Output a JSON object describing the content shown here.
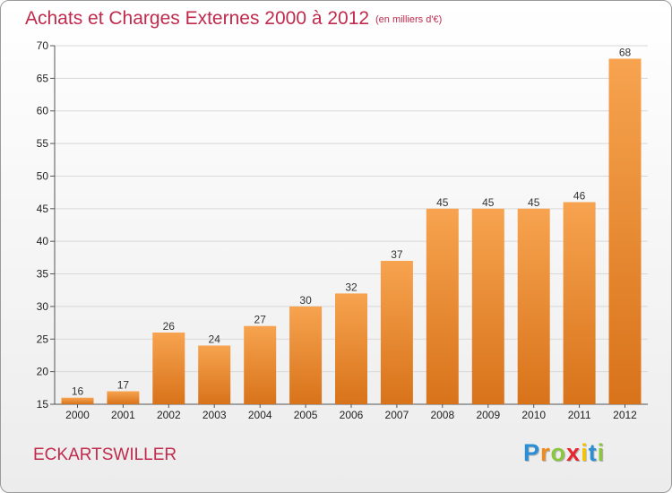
{
  "header": {
    "title": "Achats et Charges Externes 2000 à 2012",
    "subtitle": "(en milliers d'€)"
  },
  "footer": {
    "commune": "ECKARTSWILLER",
    "logo_letters": [
      "P",
      "r",
      "o",
      "x",
      "i",
      "t",
      "i"
    ],
    "logo_colors": [
      "#2b8fd6",
      "#f08a1a",
      "#8cc63f",
      "#e8262d",
      "#f5c400",
      "#2b8fd6",
      "#8cc63f"
    ]
  },
  "colors": {
    "bar_top": "#f7a34f",
    "bar_bottom": "#d8731a",
    "grid": "#d8d8d8",
    "axis": "#555555"
  },
  "chart_data": {
    "type": "bar",
    "title": "Achats et Charges Externes 2000 à 2012",
    "subtitle": "(en milliers d'€)",
    "categories": [
      "2000",
      "2001",
      "2002",
      "2003",
      "2004",
      "2005",
      "2006",
      "2007",
      "2008",
      "2009",
      "2010",
      "2011",
      "2012"
    ],
    "values": [
      16,
      17,
      26,
      24,
      27,
      30,
      32,
      37,
      45,
      45,
      45,
      46,
      68
    ],
    "ylim": [
      15,
      70
    ],
    "yticks": [
      15,
      20,
      25,
      30,
      35,
      40,
      45,
      50,
      55,
      60,
      65,
      70
    ],
    "grid": true,
    "legend": "none"
  }
}
